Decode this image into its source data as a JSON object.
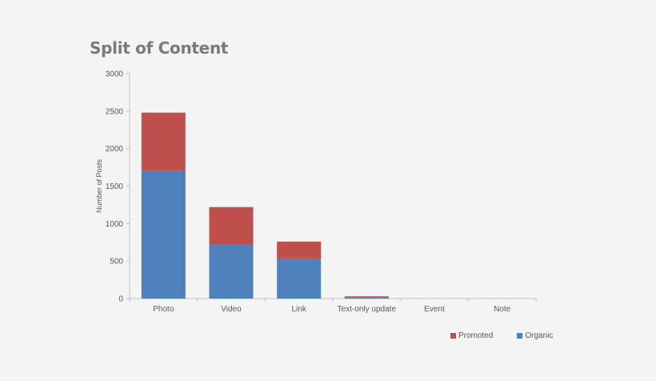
{
  "chart_data": {
    "type": "bar",
    "stacked": true,
    "title": "Split of Content",
    "xlabel": "",
    "ylabel": "Number of Posts",
    "categories": [
      "Photo",
      "Video",
      "Link",
      "Text-only update",
      "Event",
      "Note"
    ],
    "ylim": [
      0,
      3000
    ],
    "yticks": [
      0,
      500,
      1000,
      1500,
      2000,
      2500,
      3000
    ],
    "series": [
      {
        "name": "Organic",
        "color": "#4f81bd",
        "values": [
          1700,
          720,
          530,
          20,
          0,
          0
        ]
      },
      {
        "name": "Promoted",
        "color": "#c0504d",
        "values": [
          780,
          500,
          230,
          10,
          0,
          0
        ]
      }
    ],
    "legend_order": [
      "Promoted",
      "Organic"
    ],
    "legend_position": "bottom-right",
    "grid": false
  }
}
